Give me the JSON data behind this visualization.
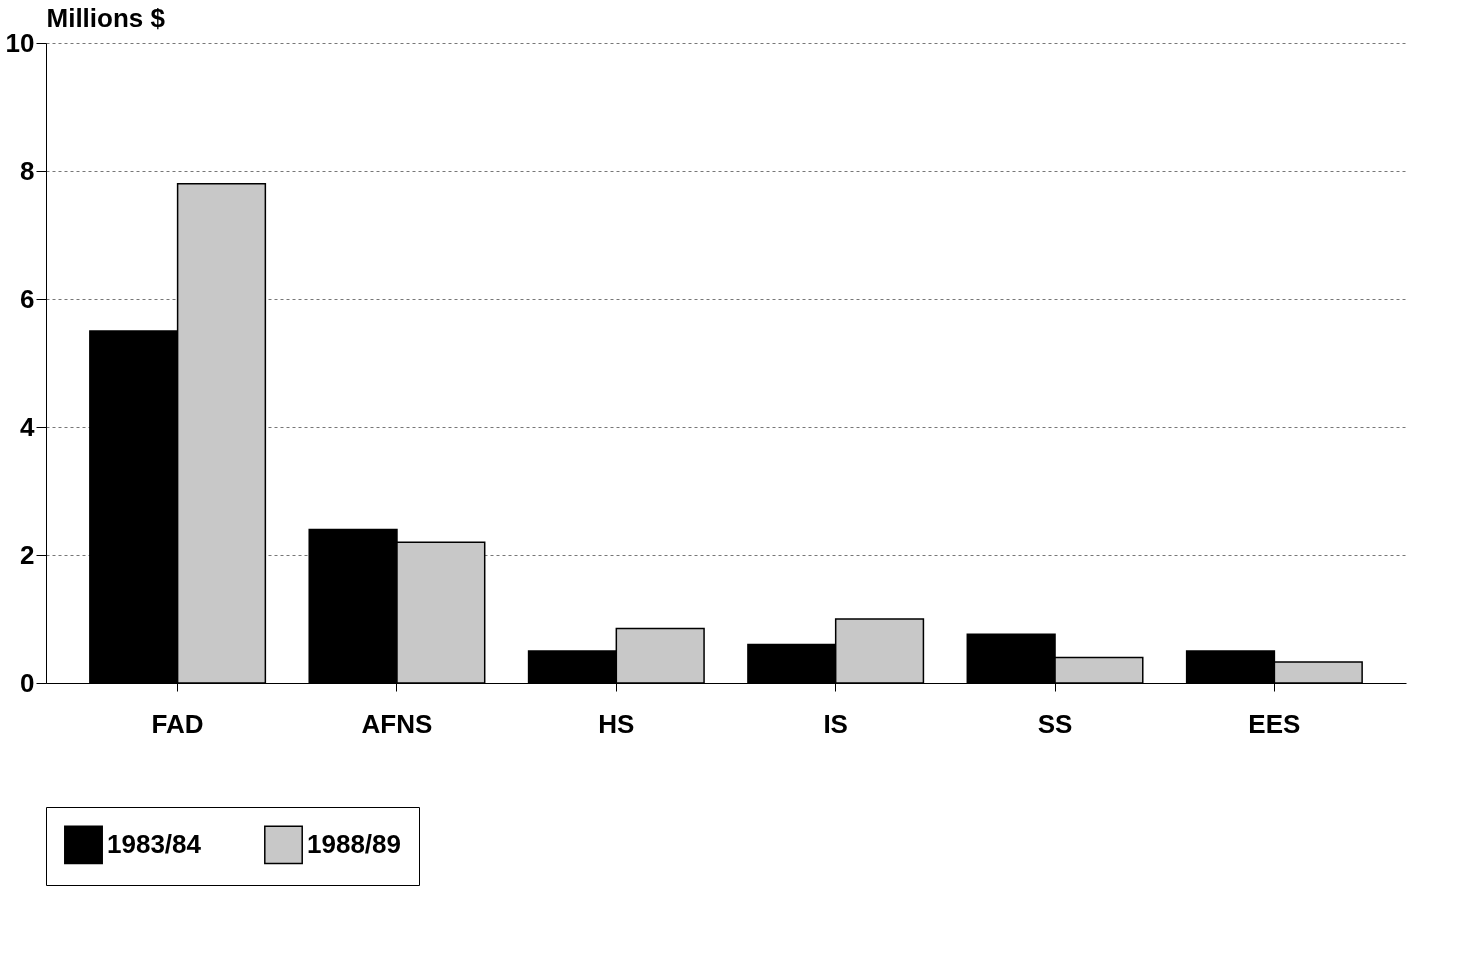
{
  "chart_data": {
    "type": "bar",
    "ylabel": "Millions $",
    "categories": [
      "FAD",
      "AFNS",
      "HS",
      "IS",
      "SS",
      "EES"
    ],
    "series": [
      {
        "name": "1983/84",
        "color": "#000000",
        "values": [
          5.5,
          2.4,
          0.5,
          0.6,
          0.76,
          0.5
        ]
      },
      {
        "name": "1988/89",
        "color": "#c8c8c8",
        "values": [
          7.8,
          2.2,
          0.85,
          1.0,
          0.4,
          0.33
        ]
      }
    ],
    "ylim": [
      0,
      10
    ],
    "yticks": [
      0,
      2,
      4,
      6,
      8,
      10
    ],
    "grid": "y",
    "legend": "bottom"
  }
}
